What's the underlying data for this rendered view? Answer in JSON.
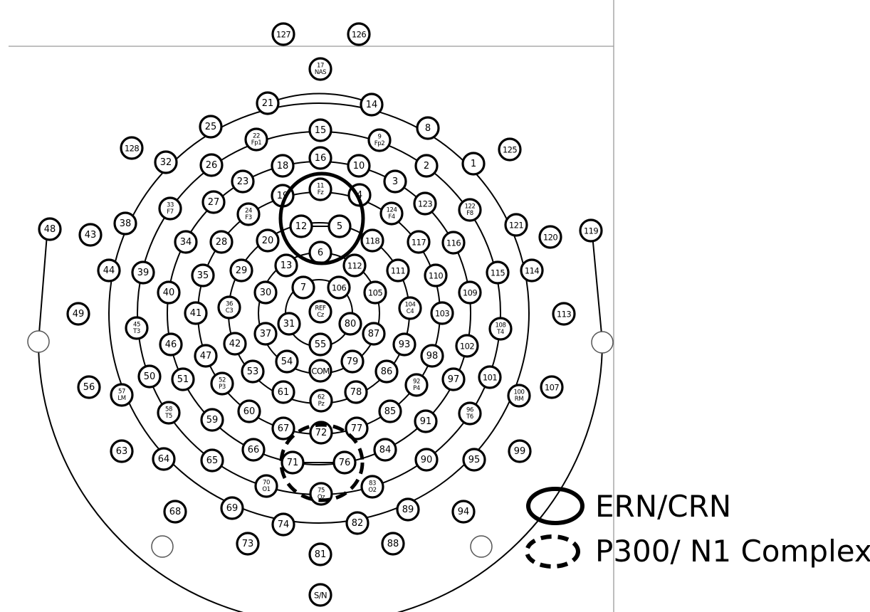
{
  "title": "",
  "legend": [
    {
      "label": "ERN/CRN",
      "style": "solid"
    },
    {
      "label": "P300/ N1 Complex",
      "style": "dashed"
    }
  ],
  "electrodes": [
    {
      "id": "e127",
      "lines": [
        "127"
      ]
    },
    {
      "id": "e126",
      "lines": [
        "126"
      ]
    },
    {
      "id": "e17",
      "lines": [
        "17",
        "NAS"
      ]
    },
    {
      "id": "e21",
      "lines": [
        "21"
      ]
    },
    {
      "id": "e14",
      "lines": [
        "14"
      ]
    },
    {
      "id": "e25",
      "lines": [
        "25"
      ]
    },
    {
      "id": "e8",
      "lines": [
        "8"
      ]
    },
    {
      "id": "e22",
      "lines": [
        "22",
        "Fp1"
      ]
    },
    {
      "id": "e15",
      "lines": [
        "15"
      ]
    },
    {
      "id": "e9",
      "lines": [
        "9",
        "Fp2"
      ]
    },
    {
      "id": "e128",
      "lines": [
        "128"
      ]
    },
    {
      "id": "e125",
      "lines": [
        "125"
      ]
    },
    {
      "id": "e32",
      "lines": [
        "32"
      ]
    },
    {
      "id": "e26",
      "lines": [
        "26"
      ]
    },
    {
      "id": "e18",
      "lines": [
        "18"
      ]
    },
    {
      "id": "e16",
      "lines": [
        "16"
      ]
    },
    {
      "id": "e10",
      "lines": [
        "10"
      ]
    },
    {
      "id": "e2",
      "lines": [
        "2"
      ]
    },
    {
      "id": "e1",
      "lines": [
        "1"
      ]
    },
    {
      "id": "e23",
      "lines": [
        "23"
      ]
    },
    {
      "id": "e3",
      "lines": [
        "3"
      ]
    },
    {
      "id": "e19",
      "lines": [
        "19"
      ]
    },
    {
      "id": "e11",
      "lines": [
        "11",
        "Fz"
      ]
    },
    {
      "id": "e4",
      "lines": [
        "4"
      ]
    },
    {
      "id": "e27",
      "lines": [
        "27"
      ]
    },
    {
      "id": "e123",
      "lines": [
        "123"
      ]
    },
    {
      "id": "e33",
      "lines": [
        "33",
        "F7"
      ]
    },
    {
      "id": "e24",
      "lines": [
        "24",
        "F3"
      ]
    },
    {
      "id": "e124",
      "lines": [
        "124",
        "F4"
      ]
    },
    {
      "id": "e122",
      "lines": [
        "122",
        "F8"
      ]
    },
    {
      "id": "e48",
      "lines": [
        "48"
      ]
    },
    {
      "id": "e43",
      "lines": [
        "43"
      ]
    },
    {
      "id": "e38",
      "lines": [
        "38"
      ]
    },
    {
      "id": "e12",
      "lines": [
        "12"
      ]
    },
    {
      "id": "e5",
      "lines": [
        "5"
      ]
    },
    {
      "id": "e121",
      "lines": [
        "121"
      ]
    },
    {
      "id": "e120",
      "lines": [
        "120"
      ]
    },
    {
      "id": "e119",
      "lines": [
        "119"
      ]
    },
    {
      "id": "e34",
      "lines": [
        "34"
      ]
    },
    {
      "id": "e28",
      "lines": [
        "28"
      ]
    },
    {
      "id": "e20",
      "lines": [
        "20"
      ]
    },
    {
      "id": "e118",
      "lines": [
        "118"
      ]
    },
    {
      "id": "e117",
      "lines": [
        "117"
      ]
    },
    {
      "id": "e116",
      "lines": [
        "116"
      ]
    },
    {
      "id": "e6",
      "lines": [
        "6"
      ]
    },
    {
      "id": "e44",
      "lines": [
        "44"
      ]
    },
    {
      "id": "e39",
      "lines": [
        "39"
      ]
    },
    {
      "id": "e35",
      "lines": [
        "35"
      ]
    },
    {
      "id": "e29",
      "lines": [
        "29"
      ]
    },
    {
      "id": "e13",
      "lines": [
        "13"
      ]
    },
    {
      "id": "e112",
      "lines": [
        "112"
      ]
    },
    {
      "id": "e111",
      "lines": [
        "111"
      ]
    },
    {
      "id": "e110",
      "lines": [
        "110"
      ]
    },
    {
      "id": "e115",
      "lines": [
        "115"
      ]
    },
    {
      "id": "e114",
      "lines": [
        "114"
      ]
    },
    {
      "id": "e40",
      "lines": [
        "40"
      ]
    },
    {
      "id": "e30",
      "lines": [
        "30"
      ]
    },
    {
      "id": "e7",
      "lines": [
        "7"
      ]
    },
    {
      "id": "e106",
      "lines": [
        "106"
      ]
    },
    {
      "id": "e105",
      "lines": [
        "105"
      ]
    },
    {
      "id": "e109",
      "lines": [
        "109"
      ]
    },
    {
      "id": "e49",
      "lines": [
        "49"
      ]
    },
    {
      "id": "e41",
      "lines": [
        "41"
      ]
    },
    {
      "id": "e36",
      "lines": [
        "36",
        "C3"
      ]
    },
    {
      "id": "eREF",
      "lines": [
        "REF",
        "Cz"
      ]
    },
    {
      "id": "e104",
      "lines": [
        "104",
        "C4"
      ]
    },
    {
      "id": "e103",
      "lines": [
        "103"
      ]
    },
    {
      "id": "e113",
      "lines": [
        "113"
      ]
    },
    {
      "id": "e45",
      "lines": [
        "45",
        "T3"
      ]
    },
    {
      "id": "e31",
      "lines": [
        "31"
      ]
    },
    {
      "id": "e80",
      "lines": [
        "80"
      ]
    },
    {
      "id": "e108",
      "lines": [
        "108",
        "T4"
      ]
    },
    {
      "id": "e37",
      "lines": [
        "37"
      ]
    },
    {
      "id": "e87",
      "lines": [
        "87"
      ]
    },
    {
      "id": "e46",
      "lines": [
        "46"
      ]
    },
    {
      "id": "e42",
      "lines": [
        "42"
      ]
    },
    {
      "id": "e55",
      "lines": [
        "55"
      ]
    },
    {
      "id": "e93",
      "lines": [
        "93"
      ]
    },
    {
      "id": "e102",
      "lines": [
        "102"
      ]
    },
    {
      "id": "e47",
      "lines": [
        "47"
      ]
    },
    {
      "id": "e98",
      "lines": [
        "98"
      ]
    },
    {
      "id": "e54",
      "lines": [
        "54"
      ]
    },
    {
      "id": "e79",
      "lines": [
        "79"
      ]
    },
    {
      "id": "e53",
      "lines": [
        "53"
      ]
    },
    {
      "id": "eCOM",
      "lines": [
        "COM"
      ]
    },
    {
      "id": "e86",
      "lines": [
        "86"
      ]
    },
    {
      "id": "e50",
      "lines": [
        "50"
      ]
    },
    {
      "id": "e51",
      "lines": [
        "51"
      ]
    },
    {
      "id": "e52",
      "lines": [
        "52",
        "P3"
      ]
    },
    {
      "id": "e97",
      "lines": [
        "97"
      ]
    },
    {
      "id": "e101",
      "lines": [
        "101"
      ]
    },
    {
      "id": "e56",
      "lines": [
        "56"
      ]
    },
    {
      "id": "e57",
      "lines": [
        "57",
        "LM"
      ]
    },
    {
      "id": "e61",
      "lines": [
        "61"
      ]
    },
    {
      "id": "e62",
      "lines": [
        "62",
        "Pz"
      ]
    },
    {
      "id": "e78",
      "lines": [
        "78"
      ]
    },
    {
      "id": "e92",
      "lines": [
        "92",
        "P4"
      ]
    },
    {
      "id": "e107",
      "lines": [
        "107"
      ]
    },
    {
      "id": "e100",
      "lines": [
        "100",
        "RM"
      ]
    },
    {
      "id": "e60",
      "lines": [
        "60"
      ]
    },
    {
      "id": "e58",
      "lines": [
        "58",
        "T5"
      ]
    },
    {
      "id": "e85",
      "lines": [
        "85"
      ]
    },
    {
      "id": "e96",
      "lines": [
        "96",
        "T6"
      ]
    },
    {
      "id": "e59",
      "lines": [
        "59"
      ]
    },
    {
      "id": "e67",
      "lines": [
        "67"
      ]
    },
    {
      "id": "e72",
      "lines": [
        "72"
      ]
    },
    {
      "id": "e77",
      "lines": [
        "77"
      ]
    },
    {
      "id": "e91",
      "lines": [
        "91"
      ]
    },
    {
      "id": "e63",
      "lines": [
        "63"
      ]
    },
    {
      "id": "e66",
      "lines": [
        "66"
      ]
    },
    {
      "id": "e84",
      "lines": [
        "84"
      ]
    },
    {
      "id": "e99",
      "lines": [
        "99"
      ]
    },
    {
      "id": "e64",
      "lines": [
        "64"
      ]
    },
    {
      "id": "e65",
      "lines": [
        "65"
      ]
    },
    {
      "id": "e71",
      "lines": [
        "71"
      ]
    },
    {
      "id": "e76",
      "lines": [
        "76"
      ]
    },
    {
      "id": "e90",
      "lines": [
        "90"
      ]
    },
    {
      "id": "e95",
      "lines": [
        "95"
      ]
    },
    {
      "id": "e70",
      "lines": [
        "70",
        "O1"
      ]
    },
    {
      "id": "e83",
      "lines": [
        "83",
        "O2"
      ]
    },
    {
      "id": "e75",
      "lines": [
        "75",
        "Oz"
      ]
    },
    {
      "id": "e68",
      "lines": [
        "68"
      ]
    },
    {
      "id": "e69",
      "lines": [
        "69"
      ]
    },
    {
      "id": "e89",
      "lines": [
        "89"
      ]
    },
    {
      "id": "e94",
      "lines": [
        "94"
      ]
    },
    {
      "id": "e74",
      "lines": [
        "74"
      ]
    },
    {
      "id": "e82",
      "lines": [
        "82"
      ]
    },
    {
      "id": "e73",
      "lines": [
        "73"
      ]
    },
    {
      "id": "e88",
      "lines": [
        "88"
      ]
    },
    {
      "id": "e81",
      "lines": [
        "81"
      ]
    },
    {
      "id": "eSN",
      "lines": [
        "S/N"
      ]
    }
  ]
}
